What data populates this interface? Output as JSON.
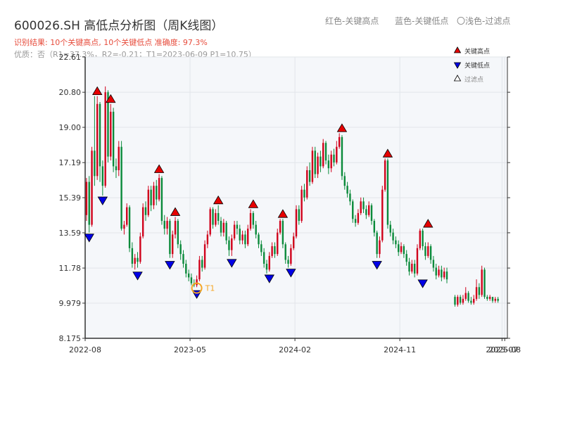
{
  "header": {
    "title": "600026.SH 高低点分析图（周K线图）",
    "result_line": "识别结果: 10个关键高点, 10个关键低点   准确度: 97.3%",
    "quality_line": "优质：否（R1=37.3%，R2=-0.21；T1=2023-06-09 P1=10.75）"
  },
  "top_legend": {
    "red": "红色-关键高点",
    "blue": "蓝色-关键低点",
    "light": "〇浅色-过滤点"
  },
  "colors": {
    "up": "#d0021b",
    "down": "#0a8a3a",
    "high_marker": "#e60000",
    "low_marker": "#0000e6",
    "filtered_marker": "#ffffff",
    "t1_marker": "#f5a623",
    "plot_bg": "#f5f7fa",
    "grid": "#e2e5ea"
  },
  "chart_data": {
    "type": "candlestick",
    "title": "600026.SH 高低点分析图（周K线图）",
    "y_ticks": [
      "22.61",
      "20.80",
      "19.00",
      "17.19",
      "15.39",
      "13.59",
      "11.78",
      "9.979",
      "8.175"
    ],
    "y_tick_values": [
      22.61,
      20.8,
      19.0,
      17.19,
      15.39,
      13.59,
      11.78,
      9.979,
      8.175
    ],
    "ylim": [
      8.175,
      22.61
    ],
    "x_ticks": [
      "2022-08",
      "2023-05",
      "2024-02",
      "2024-11",
      "2025-07",
      "2025-08"
    ],
    "x_tick_weeks": [
      0,
      39,
      78,
      117,
      155,
      156
    ],
    "x_range_weeks": [
      0,
      157
    ],
    "legend": {
      "position": "top-right",
      "entries": [
        {
          "label": "关键高点",
          "marker": "high"
        },
        {
          "label": "关键低点",
          "marker": "low"
        },
        {
          "label": "过滤点",
          "marker": "filtered"
        }
      ]
    },
    "key_highs": [
      {
        "week": 4,
        "price": 20.55
      },
      {
        "week": 9,
        "price": 20.15
      },
      {
        "week": 27,
        "price": 16.55
      },
      {
        "week": 33,
        "price": 14.35
      },
      {
        "week": 49,
        "price": 14.95
      },
      {
        "week": 62,
        "price": 14.75
      },
      {
        "week": 73,
        "price": 14.25
      },
      {
        "week": 95,
        "price": 18.65
      },
      {
        "week": 112,
        "price": 17.35
      },
      {
        "week": 127,
        "price": 13.75
      }
    ],
    "key_lows": [
      {
        "week": 1,
        "price": 13.65
      },
      {
        "week": 6,
        "price": 15.55
      },
      {
        "week": 19,
        "price": 11.7
      },
      {
        "week": 31,
        "price": 12.25
      },
      {
        "week": 41,
        "price": 10.75
      },
      {
        "week": 54,
        "price": 12.35
      },
      {
        "week": 68,
        "price": 11.55
      },
      {
        "week": 76,
        "price": 11.85
      },
      {
        "week": 108,
        "price": 12.25
      },
      {
        "week": 125,
        "price": 11.3
      }
    ],
    "t1": {
      "label": "T1",
      "week": 41,
      "price": 10.75
    },
    "candles": [
      [
        14.5,
        16.2,
        16.4,
        14.2
      ],
      [
        16.2,
        14.0,
        16.5,
        13.6
      ],
      [
        14.0,
        17.8,
        18.0,
        13.9
      ],
      [
        17.8,
        16.5,
        20.6,
        16.0
      ],
      [
        16.5,
        20.2,
        20.6,
        16.3
      ],
      [
        20.2,
        17.0,
        20.3,
        16.2
      ],
      [
        17.0,
        16.0,
        17.3,
        15.5
      ],
      [
        16.0,
        20.8,
        21.1,
        15.9
      ],
      [
        20.8,
        17.5,
        20.9,
        17.2
      ],
      [
        17.5,
        19.8,
        20.2,
        17.3
      ],
      [
        19.8,
        17.0,
        20.0,
        16.7
      ],
      [
        17.0,
        16.8,
        17.4,
        16.4
      ],
      [
        16.8,
        18.0,
        18.3,
        16.5
      ],
      [
        18.0,
        13.8,
        18.3,
        13.7
      ],
      [
        13.8,
        14.0,
        14.2,
        13.5
      ],
      [
        14.0,
        14.9,
        15.1,
        13.9
      ],
      [
        14.9,
        12.8,
        15.0,
        12.6
      ],
      [
        12.8,
        12.0,
        13.1,
        11.8
      ],
      [
        12.0,
        12.3,
        12.5,
        11.7
      ],
      [
        12.3,
        12.1,
        12.6,
        11.8
      ],
      [
        12.1,
        13.4,
        13.6,
        12.0
      ],
      [
        13.4,
        14.9,
        15.1,
        13.3
      ],
      [
        14.9,
        14.5,
        15.2,
        14.2
      ],
      [
        14.5,
        15.8,
        16.0,
        14.4
      ],
      [
        15.8,
        15.0,
        16.0,
        14.7
      ],
      [
        15.0,
        16.0,
        16.2,
        14.8
      ],
      [
        16.0,
        15.3,
        16.3,
        15.0
      ],
      [
        15.3,
        16.4,
        16.6,
        15.2
      ],
      [
        16.4,
        14.2,
        16.5,
        14.0
      ],
      [
        14.2,
        13.8,
        14.5,
        13.5
      ],
      [
        13.8,
        14.2,
        14.4,
        13.5
      ],
      [
        14.2,
        12.5,
        14.3,
        12.3
      ],
      [
        12.5,
        13.5,
        13.7,
        12.3
      ],
      [
        13.5,
        14.2,
        14.4,
        13.3
      ],
      [
        14.2,
        13.0,
        14.3,
        12.8
      ],
      [
        13.0,
        12.5,
        13.2,
        12.2
      ],
      [
        12.5,
        12.0,
        12.7,
        11.8
      ],
      [
        12.0,
        11.5,
        12.2,
        11.3
      ],
      [
        11.5,
        11.3,
        11.7,
        11.1
      ],
      [
        11.3,
        11.0,
        11.5,
        10.9
      ],
      [
        11.0,
        10.9,
        11.2,
        10.8
      ],
      [
        10.9,
        11.2,
        11.4,
        10.8
      ],
      [
        11.2,
        12.2,
        12.4,
        11.1
      ],
      [
        12.2,
        11.8,
        12.4,
        11.6
      ],
      [
        11.8,
        13.0,
        13.2,
        11.7
      ],
      [
        13.0,
        13.5,
        13.7,
        12.8
      ],
      [
        13.5,
        14.8,
        14.9,
        13.4
      ],
      [
        14.8,
        14.0,
        14.9,
        13.8
      ],
      [
        14.0,
        14.6,
        14.8,
        13.9
      ],
      [
        14.6,
        14.2,
        15.0,
        14.0
      ],
      [
        14.2,
        13.6,
        14.4,
        13.4
      ],
      [
        13.6,
        14.1,
        14.3,
        13.4
      ],
      [
        14.1,
        13.2,
        14.2,
        13.0
      ],
      [
        13.2,
        12.7,
        13.4,
        12.4
      ],
      [
        12.7,
        13.3,
        13.5,
        12.4
      ],
      [
        13.3,
        14.0,
        14.2,
        13.2
      ],
      [
        14.0,
        13.8,
        14.2,
        13.5
      ],
      [
        13.8,
        13.2,
        14.0,
        13.0
      ],
      [
        13.2,
        13.5,
        13.7,
        13.0
      ],
      [
        13.5,
        13.0,
        13.7,
        12.8
      ],
      [
        13.0,
        13.8,
        14.0,
        12.9
      ],
      [
        13.8,
        14.6,
        14.8,
        13.7
      ],
      [
        14.6,
        14.0,
        14.7,
        13.8
      ],
      [
        14.0,
        13.5,
        14.2,
        13.3
      ],
      [
        13.5,
        13.0,
        13.6,
        12.8
      ],
      [
        13.0,
        12.6,
        13.2,
        12.4
      ],
      [
        12.6,
        12.0,
        12.8,
        11.8
      ],
      [
        12.0,
        11.7,
        12.2,
        11.5
      ],
      [
        11.7,
        12.4,
        12.6,
        11.6
      ],
      [
        12.4,
        12.9,
        13.1,
        12.3
      ],
      [
        12.9,
        12.5,
        13.1,
        12.3
      ],
      [
        12.5,
        13.6,
        13.8,
        12.4
      ],
      [
        13.6,
        14.2,
        14.3,
        13.5
      ],
      [
        14.2,
        13.0,
        14.3,
        12.8
      ],
      [
        13.0,
        12.2,
        13.1,
        12.0
      ],
      [
        12.2,
        12.0,
        12.4,
        11.8
      ],
      [
        12.0,
        12.8,
        13.0,
        11.9
      ],
      [
        12.8,
        13.4,
        13.6,
        12.7
      ],
      [
        13.4,
        14.8,
        15.0,
        13.3
      ],
      [
        14.8,
        14.2,
        15.0,
        14.0
      ],
      [
        14.2,
        15.8,
        16.0,
        14.1
      ],
      [
        15.8,
        15.4,
        16.1,
        15.2
      ],
      [
        15.4,
        16.8,
        17.0,
        15.3
      ],
      [
        16.8,
        16.2,
        17.2,
        16.0
      ],
      [
        16.2,
        17.8,
        18.0,
        16.1
      ],
      [
        17.8,
        16.6,
        18.0,
        16.4
      ],
      [
        16.6,
        17.5,
        17.7,
        16.4
      ],
      [
        17.5,
        17.0,
        17.8,
        16.7
      ],
      [
        17.0,
        18.2,
        18.4,
        16.9
      ],
      [
        18.2,
        17.3,
        18.3,
        17.1
      ],
      [
        17.3,
        16.9,
        17.6,
        16.6
      ],
      [
        16.9,
        17.6,
        17.8,
        16.7
      ],
      [
        17.6,
        17.2,
        17.9,
        17.0
      ],
      [
        17.2,
        18.0,
        18.3,
        17.1
      ],
      [
        18.0,
        18.5,
        18.7,
        17.9
      ],
      [
        18.5,
        16.5,
        18.6,
        16.3
      ],
      [
        16.5,
        16.0,
        16.7,
        15.8
      ],
      [
        16.0,
        15.6,
        16.2,
        15.4
      ],
      [
        15.6,
        15.2,
        15.8,
        15.0
      ],
      [
        15.2,
        14.3,
        15.3,
        14.1
      ],
      [
        14.3,
        14.1,
        14.5,
        13.9
      ],
      [
        14.1,
        14.6,
        14.8,
        14.0
      ],
      [
        14.6,
        15.2,
        15.4,
        14.5
      ],
      [
        15.2,
        14.8,
        15.4,
        14.6
      ],
      [
        14.8,
        14.5,
        15.0,
        14.3
      ],
      [
        14.5,
        15.0,
        15.2,
        14.4
      ],
      [
        15.0,
        14.2,
        15.1,
        14.0
      ],
      [
        14.2,
        13.6,
        14.3,
        13.4
      ],
      [
        13.6,
        12.5,
        13.7,
        12.3
      ],
      [
        12.5,
        13.2,
        13.4,
        12.3
      ],
      [
        13.2,
        15.8,
        16.0,
        13.1
      ],
      [
        15.8,
        17.3,
        17.4,
        15.7
      ],
      [
        17.3,
        14.0,
        17.4,
        13.8
      ],
      [
        14.0,
        13.6,
        14.2,
        13.4
      ],
      [
        13.6,
        13.2,
        13.8,
        13.0
      ],
      [
        13.2,
        13.0,
        13.4,
        12.8
      ],
      [
        13.0,
        12.6,
        13.2,
        12.4
      ],
      [
        12.6,
        12.9,
        13.1,
        12.5
      ],
      [
        12.9,
        12.5,
        13.0,
        12.3
      ],
      [
        12.5,
        12.1,
        12.7,
        11.9
      ],
      [
        12.1,
        11.6,
        12.3,
        11.4
      ],
      [
        11.6,
        12.0,
        12.2,
        11.5
      ],
      [
        12.0,
        11.5,
        12.2,
        11.3
      ],
      [
        11.5,
        12.8,
        13.0,
        11.4
      ],
      [
        12.8,
        13.7,
        13.8,
        12.7
      ],
      [
        13.7,
        12.9,
        13.8,
        12.7
      ],
      [
        12.9,
        12.4,
        13.1,
        12.2
      ],
      [
        12.4,
        12.9,
        13.1,
        12.3
      ],
      [
        12.9,
        12.2,
        13.0,
        12.0
      ],
      [
        12.2,
        11.8,
        12.4,
        11.6
      ],
      [
        11.8,
        11.4,
        12.0,
        11.2
      ],
      [
        11.4,
        11.7,
        11.9,
        11.3
      ],
      [
        11.7,
        11.3,
        11.9,
        11.1
      ],
      [
        11.3,
        11.6,
        11.8,
        11.2
      ],
      [
        11.6,
        11.2,
        11.8,
        11.0
      ],
      null,
      null,
      [
        10.3,
        9.9,
        10.4,
        9.8
      ],
      [
        9.9,
        10.3,
        10.4,
        9.8
      ],
      [
        10.3,
        10.0,
        10.4,
        9.9
      ],
      [
        10.0,
        10.2,
        10.4,
        9.9
      ],
      [
        10.2,
        10.5,
        10.8,
        10.1
      ],
      [
        10.5,
        10.1,
        10.6,
        10.0
      ],
      [
        10.1,
        10.0,
        10.3,
        9.9
      ],
      [
        10.0,
        10.2,
        10.4,
        9.9
      ],
      [
        10.2,
        10.8,
        11.2,
        10.1
      ],
      [
        10.8,
        10.4,
        11.0,
        10.2
      ],
      [
        10.4,
        11.7,
        11.9,
        10.3
      ],
      [
        11.7,
        10.3,
        11.8,
        10.2
      ],
      [
        10.3,
        10.2,
        10.4,
        10.1
      ],
      [
        10.2,
        10.3,
        10.4,
        10.1
      ],
      [
        10.3,
        10.1,
        10.3,
        10.0
      ],
      [
        10.1,
        10.2,
        10.3,
        10.0
      ],
      [
        10.2,
        10.1,
        10.3,
        10.0
      ]
    ]
  }
}
